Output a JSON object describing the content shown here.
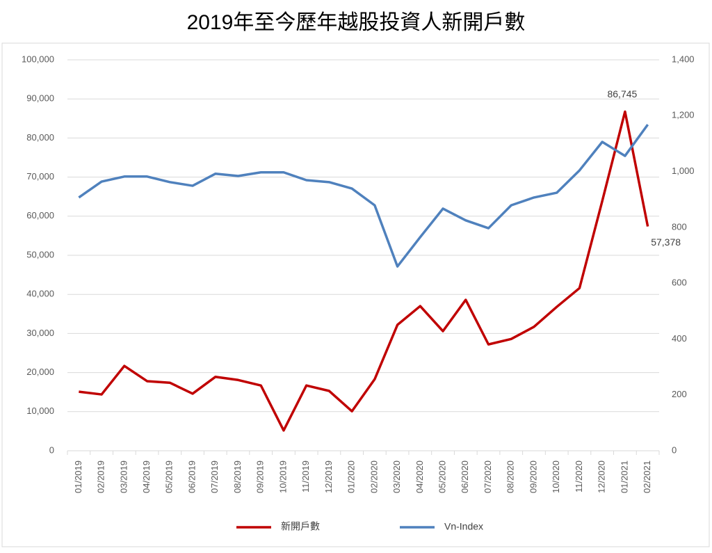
{
  "chart_data": {
    "type": "line",
    "title": "2019年至今歷年越股投資人新開戶數",
    "categories": [
      "01/2019",
      "02/2019",
      "03/2019",
      "04/2019",
      "05/2019",
      "06/2019",
      "07/2019",
      "08/2019",
      "09/2019",
      "10/2019",
      "11/2019",
      "12/2019",
      "01/2020",
      "02/2020",
      "03/2020",
      "04/2020",
      "05/2020",
      "06/2020",
      "07/2020",
      "08/2020",
      "09/2020",
      "10/2020",
      "11/2020",
      "12/2020",
      "01/2021",
      "02/2021"
    ],
    "series": [
      {
        "name": "新開戶數",
        "color": "#c00000",
        "values": [
          15100,
          14400,
          21700,
          17800,
          17400,
          14600,
          18900,
          18100,
          16700,
          5200,
          16700,
          15300,
          10100,
          18300,
          32200,
          37000,
          30600,
          38600,
          27200,
          28600,
          31700,
          36800,
          41600,
          63900,
          86745,
          57378
        ],
        "value_labels": [
          null,
          null,
          null,
          null,
          null,
          null,
          null,
          null,
          null,
          null,
          null,
          null,
          null,
          null,
          null,
          null,
          null,
          null,
          null,
          null,
          null,
          null,
          null,
          null,
          "86,745",
          "57,378"
        ]
      },
      {
        "name": "Vn-Index",
        "color": "#4f81bd",
        "axis": "y2",
        "values": [
          907,
          964,
          982,
          982,
          962,
          949,
          992,
          984,
          997,
          997,
          969,
          962,
          939,
          879,
          660,
          765,
          867,
          825,
          797,
          879,
          907,
          924,
          1004,
          1106,
          1056,
          1168
        ]
      }
    ],
    "ylim": [
      0,
      100000
    ],
    "yticks": [
      0,
      {
        "value": 10000,
        "label": "10,000"
      },
      {
        "value": 20000,
        "label": "20,000"
      },
      {
        "value": 30000,
        "label": "30,000"
      },
      {
        "value": 40000,
        "label": "40,000"
      },
      {
        "value": 50000,
        "label": "50,000"
      },
      {
        "value": 60000,
        "label": "60,000"
      },
      {
        "value": 70000,
        "label": "70,000"
      },
      {
        "value": 80000,
        "label": "80,000"
      },
      {
        "value": 90000,
        "label": "90,000"
      },
      {
        "value": 100000,
        "label": "100,000"
      }
    ],
    "y2lim": [
      0,
      1400
    ],
    "y2ticks": [
      0,
      200,
      400,
      600,
      800,
      {
        "value": 1000,
        "label": "1,000"
      },
      {
        "value": 1200,
        "label": "1,200"
      },
      {
        "value": 1400,
        "label": "1,400"
      }
    ],
    "grid": true
  }
}
